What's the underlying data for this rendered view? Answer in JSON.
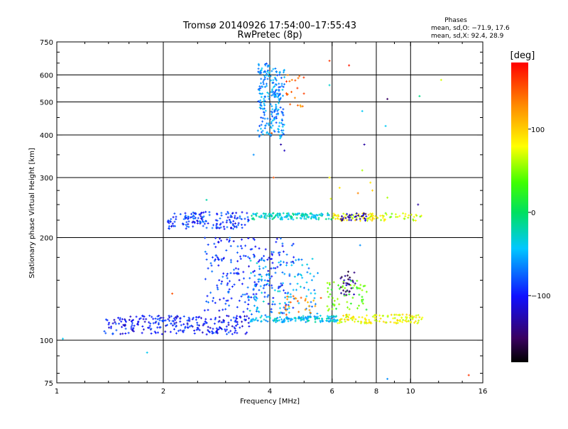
{
  "chart_data": {
    "type": "scatter",
    "title_line1": "Tromsø 20140926 17:54:00–17:55:43",
    "title_line2": "RwPretec (8p)",
    "phases": {
      "heading": "Phases",
      "line_o": "mean, sd,O: −71.9, 17.6",
      "line_x": "mean, sd,X:  92.4, 28.9"
    },
    "xlabel": "Frequency [MHz]",
    "ylabel": "Stationary phase Virtual Height [km]",
    "x_scale": "log",
    "y_scale": "log",
    "xlim": [
      1,
      16
    ],
    "ylim": [
      75,
      750
    ],
    "x_ticks": [
      {
        "v": 1,
        "label": "1"
      },
      {
        "v": 2,
        "label": "2"
      },
      {
        "v": 4,
        "label": "4"
      },
      {
        "v": 6,
        "label": "6"
      },
      {
        "v": 8,
        "label": "8"
      },
      {
        "v": 10,
        "label": "10"
      },
      {
        "v": 16,
        "label": "16"
      }
    ],
    "y_ticks": [
      {
        "v": 75,
        "label": "75"
      },
      {
        "v": 100,
        "label": "100"
      },
      {
        "v": 200,
        "label": "200"
      },
      {
        "v": 300,
        "label": "300"
      },
      {
        "v": 400,
        "label": "400"
      },
      {
        "v": 500,
        "label": "500"
      },
      {
        "v": 600,
        "label": "600"
      },
      {
        "v": 750,
        "label": "750"
      }
    ],
    "x_grid": [
      2,
      4,
      6,
      8,
      10
    ],
    "y_grid": [
      100,
      200,
      300,
      400,
      500,
      600
    ],
    "grid": true,
    "colorbar": {
      "unit": "[deg]",
      "range": [
        -180,
        180
      ],
      "ticks": [
        {
          "v": 100,
          "label": "100"
        },
        {
          "v": 0,
          "label": "0"
        },
        {
          "v": -100,
          "label": "−100"
        }
      ]
    },
    "series": [
      {
        "f_range": [
          1.35,
          3.5
        ],
        "h_range": [
          104,
          118
        ],
        "phase": -100,
        "count": 260
      },
      {
        "f_range": [
          3.5,
          6.3
        ],
        "h_range": [
          113,
          118
        ],
        "phase": -40,
        "count": 140
      },
      {
        "f_range": [
          6.2,
          10.8
        ],
        "h_range": [
          112,
          119
        ],
        "phase": 80,
        "count": 120
      },
      {
        "f_range": [
          2.6,
          4.7
        ],
        "h_range": [
          120,
          200
        ],
        "phase": -90,
        "count": 230
      },
      {
        "f_range": [
          3.5,
          5.5
        ],
        "h_range": [
          118,
          175
        ],
        "phase": -50,
        "count": 110
      },
      {
        "f_range": [
          4.2,
          5.6
        ],
        "h_range": [
          118,
          135
        ],
        "phase": 130,
        "count": 25
      },
      {
        "f_range": [
          5.8,
          7.6
        ],
        "h_range": [
          122,
          150
        ],
        "phase": 40,
        "count": 60
      },
      {
        "f_range": [
          6.3,
          7.0
        ],
        "h_range": [
          135,
          160
        ],
        "phase": -140,
        "count": 30
      },
      {
        "f_range": [
          2.05,
          3.5
        ],
        "h_range": [
          212,
          238
        ],
        "phase": -90,
        "count": 160
      },
      {
        "f_range": [
          3.5,
          6.0
        ],
        "h_range": [
          226,
          236
        ],
        "phase": -30,
        "count": 140
      },
      {
        "f_range": [
          6.0,
          8.0
        ],
        "h_range": [
          224,
          236
        ],
        "phase": 80,
        "count": 60
      },
      {
        "f_range": [
          6.3,
          7.5
        ],
        "h_range": [
          224,
          236
        ],
        "phase": -130,
        "count": 30
      },
      {
        "f_range": [
          8.0,
          10.8
        ],
        "h_range": [
          224,
          236
        ],
        "phase": 70,
        "count": 35
      },
      {
        "f_range": [
          3.7,
          4.4
        ],
        "h_range": [
          390,
          650
        ],
        "phase": -60,
        "count": 230
      },
      {
        "f_range": [
          4.45,
          5.0
        ],
        "h_range": [
          470,
          600
        ],
        "phase": 140,
        "count": 20
      }
    ],
    "scattered_points": [
      {
        "f": 1.04,
        "h": 101,
        "phase": -40
      },
      {
        "f": 1.8,
        "h": 92,
        "phase": -40
      },
      {
        "f": 2.12,
        "h": 137,
        "phase": 150
      },
      {
        "f": 5.9,
        "h": 660,
        "phase": 160
      },
      {
        "f": 6.7,
        "h": 640,
        "phase": 170
      },
      {
        "f": 5.9,
        "h": 560,
        "phase": -30
      },
      {
        "f": 7.3,
        "h": 470,
        "phase": -40
      },
      {
        "f": 8.6,
        "h": 510,
        "phase": -150
      },
      {
        "f": 8.5,
        "h": 425,
        "phase": -40
      },
      {
        "f": 10.6,
        "h": 520,
        "phase": -10
      },
      {
        "f": 12.2,
        "h": 580,
        "phase": 70
      },
      {
        "f": 14.6,
        "h": 79,
        "phase": 160
      },
      {
        "f": 8.6,
        "h": 77,
        "phase": -60
      },
      {
        "f": 4.3,
        "h": 375,
        "phase": -130
      },
      {
        "f": 4.05,
        "h": 405,
        "phase": 150
      },
      {
        "f": 3.6,
        "h": 350,
        "phase": -60
      },
      {
        "f": 4.4,
        "h": 360,
        "phase": -120
      },
      {
        "f": 7.4,
        "h": 375,
        "phase": -130
      },
      {
        "f": 5.9,
        "h": 300,
        "phase": 80
      },
      {
        "f": 7.3,
        "h": 315,
        "phase": 60
      },
      {
        "f": 6.3,
        "h": 280,
        "phase": 90
      },
      {
        "f": 7.1,
        "h": 270,
        "phase": 130
      },
      {
        "f": 10.5,
        "h": 250,
        "phase": -130
      },
      {
        "f": 4.1,
        "h": 300,
        "phase": 150
      },
      {
        "f": 7.7,
        "h": 290,
        "phase": 90
      },
      {
        "f": 7.8,
        "h": 275,
        "phase": 100
      },
      {
        "f": 5.95,
        "h": 260,
        "phase": 70
      },
      {
        "f": 8.6,
        "h": 262,
        "phase": 60
      },
      {
        "f": 7.2,
        "h": 190,
        "phase": -60
      },
      {
        "f": 2.65,
        "h": 258,
        "phase": -20
      }
    ]
  }
}
